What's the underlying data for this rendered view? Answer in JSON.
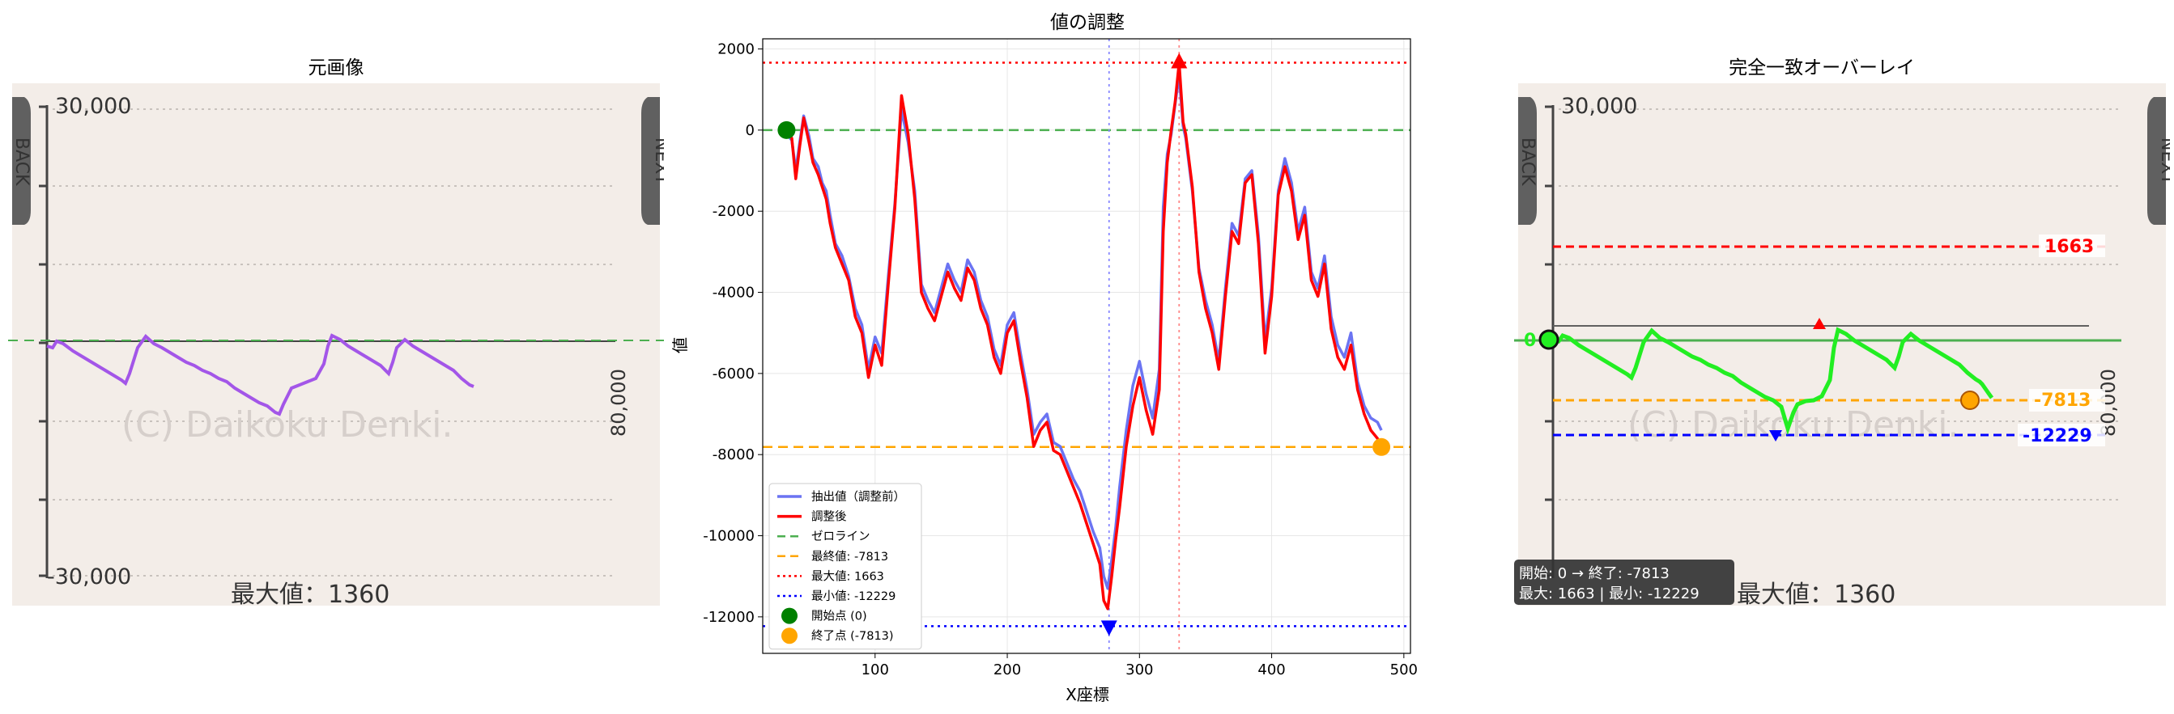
{
  "left_panel": {
    "title": "元画像",
    "tick_top": "30,000",
    "tick_bottom": "-30,000",
    "right_label": "80,000",
    "watermark": "(C) Daikoku Denki.",
    "caption": "最大値：1360",
    "nav_left": "BACK",
    "nav_right": "NEXT"
  },
  "center_panel": {
    "chart_data": {
      "type": "line",
      "title": "値の調整",
      "xlabel": "X座標",
      "ylabel": "値",
      "xlim": [
        15,
        505
      ],
      "ylim": [
        -12900,
        2250
      ],
      "x_ticks": [
        100,
        200,
        300,
        400,
        500
      ],
      "y_ticks": [
        2000,
        0,
        -2000,
        -4000,
        -6000,
        -8000,
        -10000,
        -12000
      ],
      "grid": true,
      "legend_position": "lower-left",
      "series": [
        {
          "name": "抽出値（調整前）",
          "color": "#6b74f2",
          "x": [
            33,
            37,
            40,
            43,
            46,
            50,
            53,
            57,
            60,
            63,
            66,
            70,
            75,
            80,
            85,
            90,
            95,
            100,
            105,
            110,
            115,
            120,
            125,
            130,
            135,
            140,
            145,
            150,
            155,
            160,
            165,
            170,
            175,
            180,
            185,
            190,
            195,
            200,
            205,
            210,
            215,
            220,
            225,
            230,
            235,
            240,
            245,
            250,
            255,
            260,
            265,
            270,
            273,
            276,
            279,
            282,
            285,
            290,
            295,
            300,
            305,
            310,
            315,
            318,
            321,
            324,
            327,
            330,
            333,
            335,
            340,
            345,
            350,
            355,
            360,
            365,
            370,
            375,
            380,
            385,
            390,
            395,
            400,
            405,
            410,
            415,
            420,
            425,
            430,
            435,
            440,
            445,
            450,
            455,
            460,
            465,
            470,
            475,
            480,
            483
          ],
          "values": [
            -100,
            -250,
            -1000,
            -300,
            350,
            -150,
            -700,
            -900,
            -1300,
            -1500,
            -2100,
            -2800,
            -3100,
            -3600,
            -4400,
            -4800,
            -5900,
            -5100,
            -5500,
            -3600,
            -1800,
            500,
            -300,
            -1500,
            -3800,
            -4200,
            -4500,
            -3900,
            -3300,
            -3700,
            -4000,
            -3200,
            -3500,
            -4200,
            -4600,
            -5400,
            -5800,
            -4800,
            -4500,
            -5500,
            -6400,
            -7500,
            -7200,
            -7000,
            -7700,
            -7800,
            -8200,
            -8600,
            -8900,
            -9400,
            -9900,
            -10300,
            -11000,
            -11300,
            -10600,
            -9800,
            -8800,
            -7400,
            -6300,
            -5700,
            -6500,
            -7100,
            -5900,
            -1900,
            -600,
            -100,
            650,
            1350,
            100,
            -200,
            -1500,
            -3400,
            -4200,
            -4800,
            -5700,
            -3900,
            -2300,
            -2600,
            -1200,
            -1000,
            -2600,
            -5200,
            -3900,
            -1500,
            -700,
            -1300,
            -2500,
            -1900,
            -3500,
            -3900,
            -3100,
            -4600,
            -5300,
            -5600,
            -5000,
            -6200,
            -6800,
            -7100,
            -7200,
            -7400
          ],
          "linewidth": 3.5
        },
        {
          "name": "調整後",
          "color": "#ff0000",
          "x": [
            33,
            37,
            40,
            43,
            46,
            50,
            53,
            57,
            60,
            63,
            66,
            70,
            75,
            80,
            85,
            90,
            95,
            100,
            105,
            110,
            115,
            120,
            125,
            130,
            135,
            140,
            145,
            150,
            155,
            160,
            165,
            170,
            175,
            180,
            185,
            190,
            195,
            200,
            205,
            210,
            215,
            220,
            225,
            230,
            235,
            240,
            245,
            250,
            255,
            260,
            265,
            270,
            273,
            276,
            279,
            282,
            285,
            290,
            295,
            300,
            305,
            310,
            315,
            318,
            321,
            324,
            327,
            330,
            333,
            335,
            340,
            345,
            350,
            355,
            360,
            365,
            370,
            375,
            380,
            385,
            390,
            395,
            400,
            405,
            410,
            415,
            420,
            425,
            430,
            435,
            440,
            445,
            450,
            455,
            460,
            465,
            470,
            475,
            480,
            483
          ],
          "values": [
            0,
            -200,
            -1200,
            -400,
            300,
            -300,
            -800,
            -1100,
            -1400,
            -1700,
            -2300,
            -2900,
            -3300,
            -3700,
            -4600,
            -5000,
            -6100,
            -5300,
            -5800,
            -3800,
            -1900,
            850,
            -100,
            -1700,
            -4000,
            -4400,
            -4700,
            -4100,
            -3500,
            -3900,
            -4200,
            -3400,
            -3700,
            -4400,
            -4800,
            -5600,
            -6000,
            -5000,
            -4700,
            -5700,
            -6600,
            -7800,
            -7400,
            -7200,
            -7900,
            -8000,
            -8400,
            -8800,
            -9200,
            -9700,
            -10200,
            -10700,
            -11600,
            -11800,
            -11000,
            -10100,
            -9300,
            -7800,
            -6800,
            -6100,
            -6900,
            -7500,
            -6400,
            -2500,
            -800,
            0,
            700,
            1663,
            200,
            -100,
            -1400,
            -3500,
            -4400,
            -5000,
            -5900,
            -4100,
            -2500,
            -2800,
            -1300,
            -1100,
            -2800,
            -5500,
            -4100,
            -1600,
            -900,
            -1500,
            -2700,
            -2100,
            -3700,
            -4100,
            -3300,
            -4900,
            -5600,
            -5900,
            -5300,
            -6400,
            -7000,
            -7400,
            -7600,
            -7813
          ],
          "linewidth": 3.5
        }
      ],
      "reference_lines": [
        {
          "name": "ゼロライン",
          "axis": "y",
          "value": 0,
          "color": "#4caf50",
          "style": "dashed"
        },
        {
          "name": "最終値: -7813",
          "axis": "y",
          "value": -7813,
          "color": "#ffa500",
          "style": "dashed"
        },
        {
          "name": "最大値: 1663",
          "axis": "y",
          "value": 1663,
          "color": "#ff0000",
          "style": "dotted"
        },
        {
          "name": "最小値: -12229",
          "axis": "y",
          "value": -12229,
          "color": "#0000ff",
          "style": "dotted"
        },
        {
          "name": "",
          "axis": "x",
          "value": 277,
          "color": "#8888ff",
          "style": "dotted"
        },
        {
          "name": "",
          "axis": "x",
          "value": 330,
          "color": "#ff8888",
          "style": "dotted"
        }
      ],
      "markers": [
        {
          "name": "開始点 (0)",
          "x": 33,
          "y": 0,
          "color": "#008000",
          "shape": "circle"
        },
        {
          "name": "終了点 (-7813)",
          "x": 483,
          "y": -7813,
          "color": "#ffa500",
          "shape": "circle"
        },
        {
          "name": "",
          "x": 330,
          "y": 1663,
          "color": "#ff0000",
          "shape": "triangle-up"
        },
        {
          "name": "",
          "x": 277,
          "y": -12229,
          "color": "#0000ff",
          "shape": "triangle-down"
        }
      ]
    }
  },
  "right_panel": {
    "title": "完全一致オーバーレイ",
    "tick_top": "30,000",
    "right_label": "80,000",
    "watermark": "(C) Daikoku Denki.",
    "caption": "最大値：1360",
    "zero_label": "0",
    "max_label": "1663",
    "final_label": "-7813",
    "min_label": "-12229",
    "info_line1": "開始: 0 → 終了: -7813",
    "info_line2": "最大: 1663 | 最小: -12229",
    "nav_left": "BACK",
    "nav_right": "NEXT"
  }
}
